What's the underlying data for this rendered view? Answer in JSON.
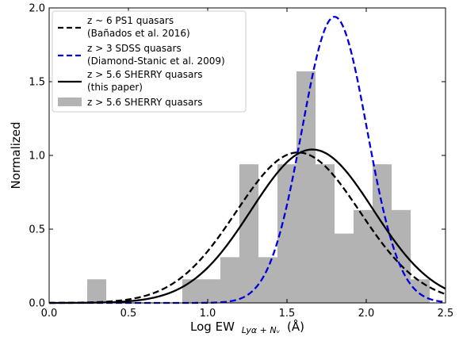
{
  "chart_data": {
    "type": "bar",
    "xlabel": "Log EW",
    "xlabel_sub": "Lyα + Nᵥ",
    "xlabel_unit": "(Å)",
    "ylabel": "Normalized",
    "xlim": [
      0.0,
      2.5
    ],
    "ylim": [
      0.0,
      2.0
    ],
    "xticks": [
      "0.0",
      "0.5",
      "1.0",
      "1.5",
      "2.0",
      "2.5"
    ],
    "yticks": [
      "0.0",
      "0.5",
      "1.0",
      "1.5",
      "2.0"
    ],
    "grid": false,
    "legend_position": "top-left",
    "histogram": {
      "name": "z > 5.6 SHERRY quasars",
      "color": "#b3b3b3",
      "bin_width": 0.12,
      "bins": [
        {
          "x0": 0.24,
          "value": 0.16
        },
        {
          "x0": 0.84,
          "value": 0.16
        },
        {
          "x0": 0.96,
          "value": 0.16
        },
        {
          "x0": 1.08,
          "value": 0.31
        },
        {
          "x0": 1.2,
          "value": 0.94
        },
        {
          "x0": 1.32,
          "value": 0.31
        },
        {
          "x0": 1.44,
          "value": 0.94
        },
        {
          "x0": 1.56,
          "value": 1.57
        },
        {
          "x0": 1.68,
          "value": 0.94
        },
        {
          "x0": 1.8,
          "value": 0.47
        },
        {
          "x0": 1.92,
          "value": 0.63
        },
        {
          "x0": 2.04,
          "value": 0.94
        },
        {
          "x0": 2.16,
          "value": 0.63
        },
        {
          "x0": 2.28,
          "value": 0.16
        }
      ]
    },
    "series": [
      {
        "name": "z ~ 6 PS1 quasars",
        "name_note": "(Bañados et al. 2016)",
        "mu": 1.57,
        "sigma": 0.39,
        "peak": 1.02,
        "color": "#000000",
        "dashed": true
      },
      {
        "name": "z > 3 SDSS quasars",
        "name_note": "(Diamond-Stanic et al. 2009)",
        "mu": 1.8,
        "sigma": 0.205,
        "peak": 1.94,
        "color": "#0000dd",
        "dashed": true
      },
      {
        "name": "z > 5.6 SHERRY quasars",
        "name_note": "(this paper)",
        "mu": 1.66,
        "sigma": 0.385,
        "peak": 1.04,
        "color": "#000000",
        "dashed": false
      }
    ]
  },
  "legend": [
    {
      "symbol": "dashed-black",
      "line1": "z ~ 6 PS1 quasars",
      "line2": "(Bañados et al. 2016)"
    },
    {
      "symbol": "dashed-blue",
      "line1": "z > 3 SDSS quasars",
      "line2": "(Diamond-Stanic et al. 2009)"
    },
    {
      "symbol": "solid-black",
      "line1": "z > 5.6 SHERRY quasars",
      "line2": "(this paper)"
    },
    {
      "symbol": "gray-patch",
      "line1": "z > 5.6 SHERRY quasars",
      "line2": ""
    }
  ]
}
